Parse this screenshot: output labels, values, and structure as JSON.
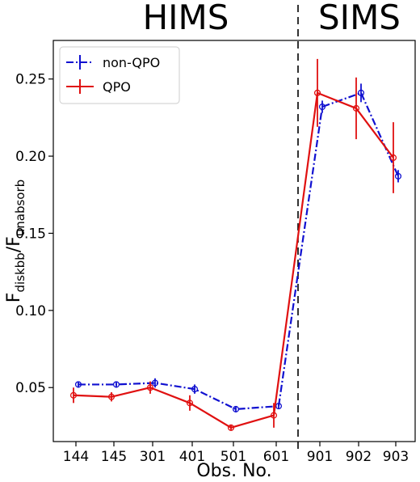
{
  "chart_data": {
    "type": "line",
    "categories": [
      "144",
      "145",
      "301",
      "401",
      "501",
      "601",
      "901",
      "902",
      "903"
    ],
    "xlabel": "Obs. No.",
    "ylabel": {
      "main": "F",
      "sub1": "diskbb",
      "mid": "/F",
      "sub2": "unabsorb"
    },
    "ylim": [
      0.015,
      0.275
    ],
    "yticks": [
      0.05,
      0.1,
      0.15,
      0.2,
      0.25
    ],
    "ytick_labels": [
      "0.05",
      "0.10",
      "0.15",
      "0.20",
      "0.25"
    ],
    "grid": false,
    "legend_position": "top-left",
    "regions": [
      {
        "label": "HIMS",
        "start": 0,
        "end": 5
      },
      {
        "label": "SIMS",
        "start": 6,
        "end": 8
      }
    ],
    "divider_after_index": 5,
    "series": [
      {
        "name": "non-QPO",
        "color": "#1010d0",
        "style": "dashdot",
        "values": [
          0.052,
          0.052,
          0.053,
          0.049,
          0.036,
          0.038,
          0.232,
          0.241,
          0.187
        ],
        "errors": [
          0.002,
          0.002,
          0.003,
          0.003,
          0.002,
          0.002,
          0.004,
          0.006,
          0.004
        ]
      },
      {
        "name": "QPO",
        "color": "#e01010",
        "style": "solid",
        "values": [
          0.045,
          0.044,
          0.05,
          0.04,
          0.024,
          0.032,
          0.241,
          0.231,
          0.199
        ],
        "errors": [
          0.005,
          0.003,
          0.004,
          0.005,
          0.002,
          0.008,
          0.022,
          0.02,
          0.023
        ]
      }
    ]
  }
}
